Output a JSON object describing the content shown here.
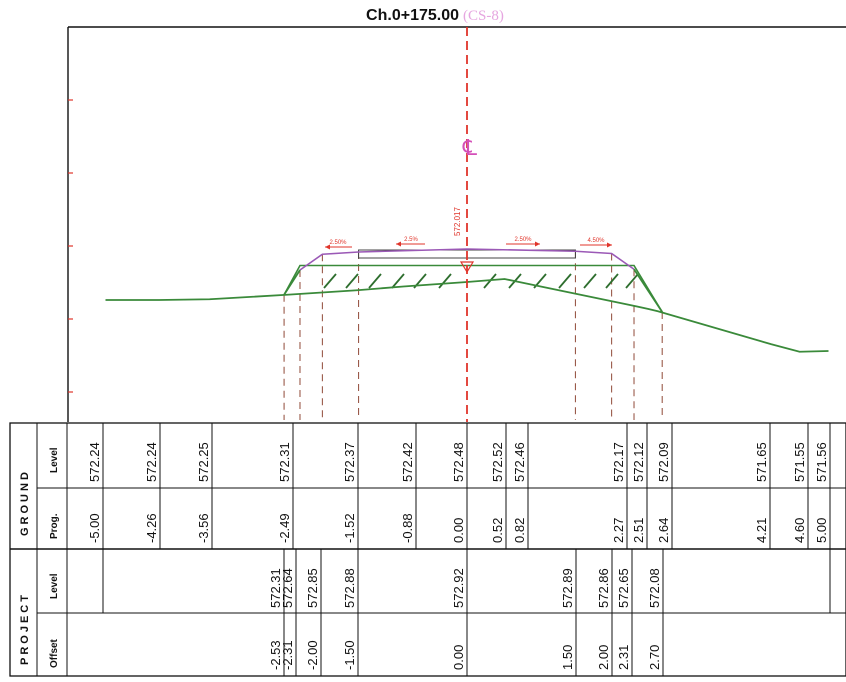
{
  "title": {
    "chainage": "Ch.0+175.00",
    "section": "(CS-8)"
  },
  "centerline": {
    "symbol": "℄",
    "level_label": "572.017"
  },
  "slope_labels": [
    "2.50%",
    "2.5%",
    "2.50%",
    "4.50%"
  ],
  "groups": {
    "ground": "GROUND",
    "project": "PROJECT"
  },
  "row_labels": {
    "ground_level": "Level",
    "ground_prog": "Prog.",
    "project_level": "Level",
    "project_offset": "Offset"
  },
  "colors": {
    "ground_line": "#3a8a3a",
    "project_top": "#9b59b6",
    "centerline": "#e0352b",
    "construction": "#9a5a4a",
    "hatch": "#2e6e2e"
  },
  "chart_data": {
    "type": "cross-section",
    "ground": {
      "offsets": [
        -5.0,
        -4.26,
        -3.56,
        -2.49,
        -1.52,
        -0.88,
        0.0,
        0.52,
        0.82,
        2.27,
        2.51,
        2.64,
        4.21,
        4.6,
        5.0
      ],
      "levels": [
        572.24,
        572.24,
        572.25,
        572.31,
        572.37,
        572.42,
        572.48,
        572.52,
        572.46,
        572.17,
        572.12,
        572.09,
        571.65,
        571.55,
        571.56
      ],
      "offset_labels": [
        "-5.00",
        "-4.26",
        "-3.56",
        "-2.49",
        "-1.52",
        "-0.88",
        "0.00",
        "0.52",
        "0.82",
        "2.27",
        "2.51",
        "2.64",
        "4.21",
        "4.60",
        "5.00"
      ],
      "level_labels": [
        "572.24",
        "572.24",
        "572.25",
        "572.31",
        "572.37",
        "572.42",
        "572.48",
        "572.52",
        "572.46",
        "572.17",
        "572.12",
        "572.09",
        "571.65",
        "571.55",
        "571.56"
      ]
    },
    "project": {
      "offsets": [
        -2.53,
        -2.31,
        -2.0,
        -1.5,
        0.0,
        1.5,
        2.0,
        2.31,
        2.7
      ],
      "levels": [
        572.31,
        572.64,
        572.85,
        572.88,
        572.92,
        572.89,
        572.86,
        572.65,
        572.08
      ],
      "offset_labels": [
        "-2.53",
        "-2.31",
        "-2.00",
        "-1.50",
        "0.00",
        "1.50",
        "2.00",
        "2.31",
        "2.70"
      ],
      "level_labels": [
        "572.31",
        "572.64",
        "572.85",
        "572.88",
        "572.92",
        "572.89",
        "572.86",
        "572.65",
        "572.08"
      ]
    }
  }
}
